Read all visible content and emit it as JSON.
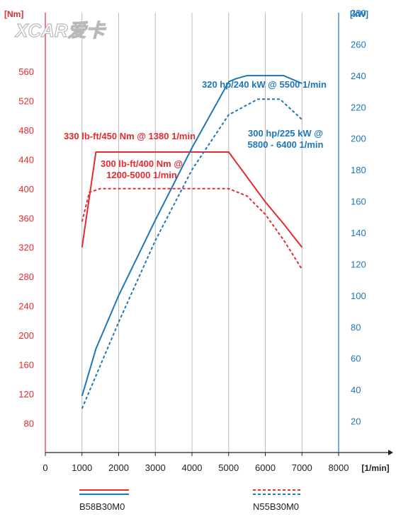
{
  "watermark": "XCAR爱卡",
  "chart_data": {
    "type": "line",
    "x_unit": "[1/min]",
    "x_ticks": [
      0,
      1000,
      2000,
      3000,
      4000,
      5000,
      6000,
      7000,
      8000
    ],
    "xlim": [
      0,
      8000
    ],
    "y_left": {
      "unit": "[Nm]",
      "range": [
        40,
        640
      ],
      "ticks": [
        80,
        120,
        160,
        200,
        240,
        280,
        320,
        360,
        400,
        440,
        480,
        520,
        560
      ],
      "color": "#e52a30"
    },
    "y_right": {
      "unit": "[kW]",
      "range": [
        0,
        280
      ],
      "ticks": [
        20,
        40,
        60,
        80,
        100,
        120,
        140,
        160,
        180,
        200,
        220,
        240,
        260,
        280
      ],
      "color": "#1f76b7"
    },
    "grid": "vertical",
    "series": [
      {
        "engine": "B58B30M0",
        "quantity": "torque",
        "axis": "left",
        "style": "solid",
        "color": "#e52a30",
        "points": [
          [
            1000,
            320
          ],
          [
            1380,
            450
          ],
          [
            5000,
            450
          ],
          [
            6000,
            382
          ],
          [
            6500,
            352
          ],
          [
            7000,
            320
          ]
        ]
      },
      {
        "engine": "B58B30M0",
        "quantity": "power",
        "axis": "right",
        "style": "solid",
        "color": "#1f76b7",
        "points": [
          [
            1000,
            36
          ],
          [
            1380,
            66
          ],
          [
            2000,
            100
          ],
          [
            3000,
            148
          ],
          [
            4000,
            194
          ],
          [
            5000,
            236
          ],
          [
            5200,
            238
          ],
          [
            5500,
            240
          ],
          [
            6500,
            240
          ],
          [
            7000,
            235
          ]
        ]
      },
      {
        "engine": "N55B30M0",
        "quantity": "torque",
        "axis": "left",
        "style": "dashed",
        "color": "#e52a30",
        "points": [
          [
            1000,
            355
          ],
          [
            1200,
            395
          ],
          [
            1500,
            400
          ],
          [
            5000,
            400
          ],
          [
            5500,
            390
          ],
          [
            6000,
            365
          ],
          [
            6500,
            330
          ],
          [
            7000,
            290
          ]
        ]
      },
      {
        "engine": "N55B30M0",
        "quantity": "power",
        "axis": "right",
        "style": "dashed",
        "color": "#1f76b7",
        "points": [
          [
            1000,
            28
          ],
          [
            2000,
            83
          ],
          [
            3000,
            135
          ],
          [
            4000,
            180
          ],
          [
            5000,
            215
          ],
          [
            5800,
            225
          ],
          [
            6400,
            225
          ],
          [
            7000,
            212
          ]
        ]
      }
    ],
    "annotations": [
      {
        "lines": [
          "320 hp/240 kW @ 5500 1/min"
        ],
        "color": "#1f76b7"
      },
      {
        "lines": [
          "300 hp/225 kW @",
          "5800 - 6400 1/min"
        ],
        "color": "#1f76b7"
      },
      {
        "lines": [
          "330 lb-ft/450 Nm @ 1380 1/min"
        ],
        "color": "#e52a30"
      },
      {
        "lines": [
          "300 lb-ft/400 Nm @",
          "1200-5000 1/min"
        ],
        "color": "#e52a30"
      }
    ],
    "legend": [
      {
        "label": "B58B30M0",
        "style": "solid"
      },
      {
        "label": "N55B30M0",
        "style": "dashed"
      }
    ]
  }
}
